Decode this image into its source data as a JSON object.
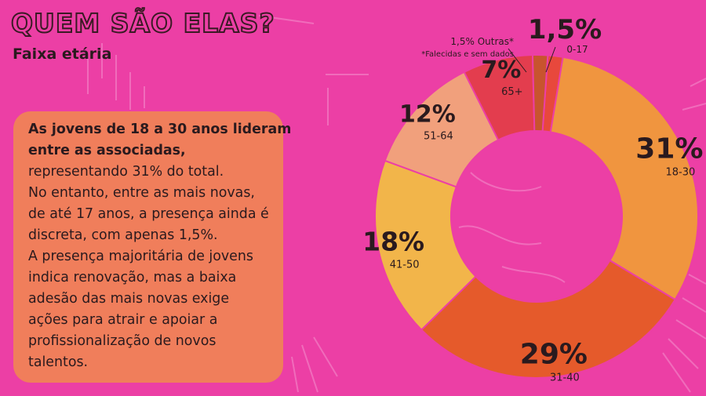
{
  "header": {
    "title": "QUEM SÃO ELAS?",
    "subtitle": "Faixa etária"
  },
  "note": {
    "lines_bold": [
      "As jovens de 18 a 30 anos lideram",
      "entre as associadas,"
    ],
    "lines": [
      "representando 31% do total.",
      "No entanto, entre as mais novas,",
      "de até 17 anos, a presença ainda é",
      "discreta, com apenas 1,5%.",
      "A presença majoritária de jovens",
      "indica renovação, mas a baixa",
      "adesão das mais novas exige",
      "ações para atrair e apoiar a",
      "profissionalização de novos",
      "talentos."
    ]
  },
  "colors": {
    "background": "#ec3fa5",
    "note_box": "#f07e5b",
    "text_dark": "#2a1a1e"
  },
  "chart_data": {
    "type": "pie",
    "donut": true,
    "slices": [
      {
        "label": "0-17",
        "value": 1.5,
        "value_text": "1,5%",
        "color": "#e8483c"
      },
      {
        "label": "18-30",
        "value": 31,
        "value_text": "31%",
        "color": "#f0953f"
      },
      {
        "label": "31-40",
        "value": 29,
        "value_text": "29%",
        "color": "#e55a2b"
      },
      {
        "label": "41-50",
        "value": 18,
        "value_text": "18%",
        "color": "#f2b54a"
      },
      {
        "label": "51-64",
        "value": 12,
        "value_text": "12%",
        "color": "#f1a07c"
      },
      {
        "label": "65+",
        "value": 7,
        "value_text": "7%",
        "color": "#e33d4e"
      },
      {
        "label": "1,5% Outras*",
        "value": 1.5,
        "value_text": "",
        "color": "#c8542e"
      }
    ],
    "annotation": {
      "text": "1,5% Outras*",
      "footnote": "*Falecidas e sem dados"
    }
  }
}
